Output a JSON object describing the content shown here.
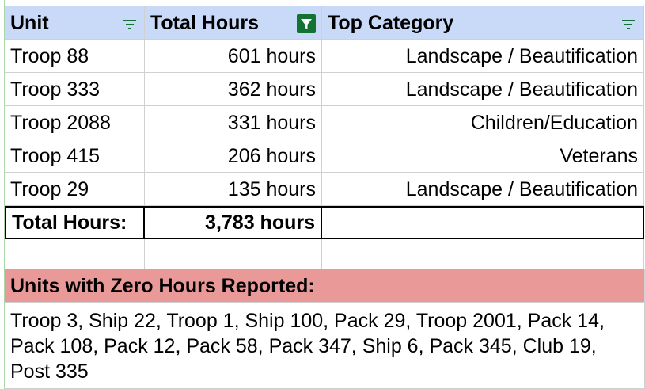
{
  "table": {
    "header": [
      "Unit",
      "Total Hours",
      "Top Category"
    ],
    "rows": [
      [
        "Troop 88",
        "601 hours",
        "Landscape / Beautification"
      ],
      [
        "Troop 333",
        "362 hours",
        "Landscape / Beautification"
      ],
      [
        "Troop 2088",
        "331 hours",
        "Children/Education"
      ],
      [
        "Troop 415",
        "206 hours",
        "Veterans"
      ],
      [
        "Troop 29",
        "135 hours",
        "Landscape / Beautification"
      ]
    ],
    "total": {
      "label": "Total Hours:",
      "value": "3,783 hours"
    }
  },
  "zero_hours": {
    "title": "Units with Zero Hours Reported:",
    "units": "Troop 3, Ship 22, Troop 1, Ship 100, Pack 29, Troop 2001, Pack 14, Pack 108, Pack 12, Pack 58, Pack 347, Ship 6, Pack 345, Club 19, Post 335"
  }
}
